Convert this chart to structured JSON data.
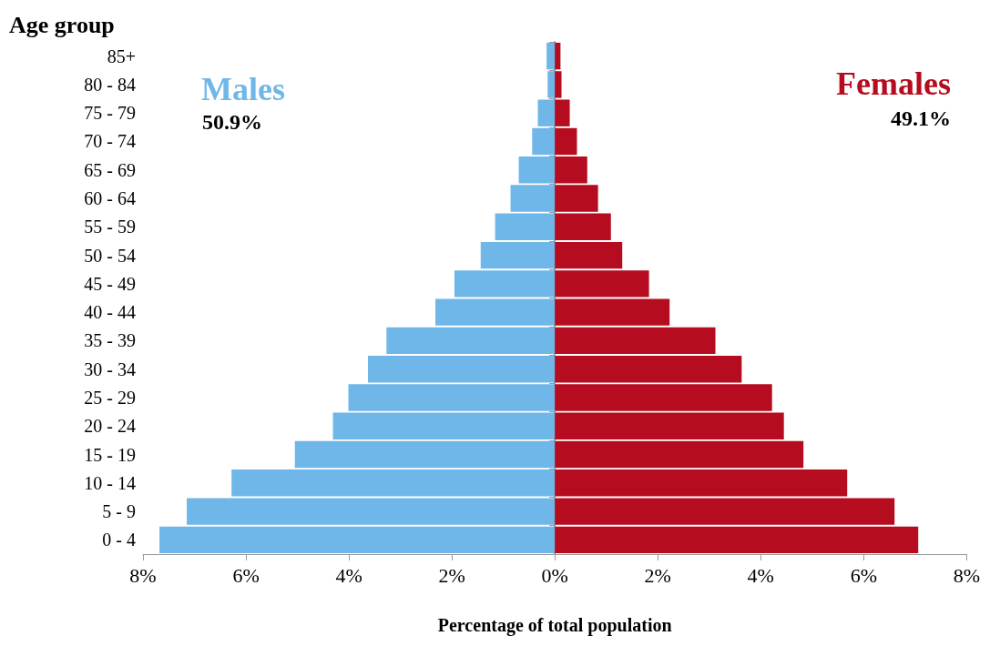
{
  "chart_data": {
    "type": "bar",
    "orientation": "horizontal",
    "xlabel": "Percentage of total population",
    "ylabel": "Age group",
    "categories": [
      "85+",
      "80 - 84",
      "75 - 79",
      "70 - 74",
      "65 - 69",
      "60 - 64",
      "55 - 59",
      "50 - 54",
      "45 - 49",
      "40 - 44",
      "35 - 39",
      "30 - 34",
      "25 - 29",
      "20 - 24",
      "15 - 19",
      "10 - 14",
      "5 - 9",
      "0 - 4"
    ],
    "series": [
      {
        "name": "Males",
        "color": "#6fb7e8",
        "values": [
          -0.16,
          -0.14,
          -0.33,
          -0.44,
          -0.7,
          -0.86,
          -1.16,
          -1.44,
          -1.95,
          -2.32,
          -3.27,
          -3.63,
          -4.01,
          -4.31,
          -5.05,
          -6.28,
          -7.15,
          -7.68
        ]
      },
      {
        "name": "Females",
        "color": "#b50d1f",
        "values": [
          0.11,
          0.13,
          0.29,
          0.43,
          0.63,
          0.84,
          1.09,
          1.31,
          1.83,
          2.23,
          3.12,
          3.63,
          4.22,
          4.45,
          4.83,
          5.68,
          6.6,
          7.06
        ]
      }
    ],
    "annotations": [
      "50.9%",
      "49.1%"
    ],
    "xlim": [
      -8,
      8
    ],
    "xticks": [
      {
        "value": -8,
        "label": "8%"
      },
      {
        "value": -6,
        "label": "6%"
      },
      {
        "value": -4,
        "label": "4%"
      },
      {
        "value": -2,
        "label": "2%"
      },
      {
        "value": 0,
        "label": "0%"
      },
      {
        "value": 2,
        "label": "2%"
      },
      {
        "value": 4,
        "label": "4%"
      },
      {
        "value": 6,
        "label": "6%"
      },
      {
        "value": 8,
        "label": "8%"
      }
    ],
    "stacked": true,
    "legend": false
  }
}
